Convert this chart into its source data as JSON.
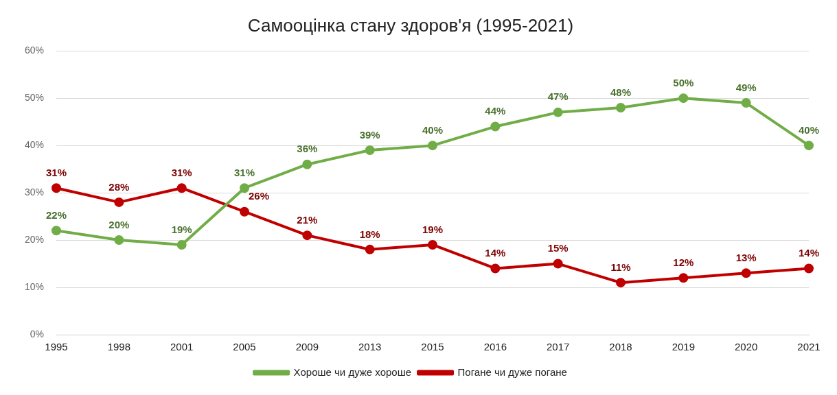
{
  "chart_data": {
    "type": "line",
    "title": "Самооцінка стану здоров'я (1995-2021)",
    "categories": [
      "1995",
      "1998",
      "2001",
      "2005",
      "2009",
      "2013",
      "2015",
      "2016",
      "2017",
      "2018",
      "2019",
      "2020",
      "2021"
    ],
    "series": [
      {
        "name": "Хороше чи дуже хороше",
        "color": "#70ad47",
        "values": [
          22,
          20,
          19,
          31,
          36,
          39,
          40,
          44,
          47,
          48,
          50,
          49,
          40
        ],
        "value_labels": [
          "22%",
          "20%",
          "19%",
          "31%",
          "36%",
          "39%",
          "40%",
          "44%",
          "47%",
          "48%",
          "50%",
          "49%",
          "40%"
        ]
      },
      {
        "name": "Погане чи дуже погане",
        "color": "#c00000",
        "values": [
          31,
          28,
          31,
          26,
          21,
          18,
          19,
          14,
          15,
          11,
          12,
          13,
          14
        ],
        "value_labels": [
          "31%",
          "28%",
          "31%",
          "26%",
          "21%",
          "18%",
          "19%",
          "14%",
          "15%",
          "11%",
          "12%",
          "13%",
          "14%"
        ]
      }
    ],
    "ylim": [
      0,
      60
    ],
    "yticks": [
      {
        "value": 0,
        "label": "0%"
      },
      {
        "value": 10,
        "label": "10%"
      },
      {
        "value": 20,
        "label": "20%"
      },
      {
        "value": 30,
        "label": "30%"
      },
      {
        "value": 40,
        "label": "40%"
      },
      {
        "value": 50,
        "label": "50%"
      },
      {
        "value": 60,
        "label": "60%"
      }
    ],
    "grid": "y",
    "legend": "bottom",
    "marker": "circle",
    "line_style": "solid"
  }
}
